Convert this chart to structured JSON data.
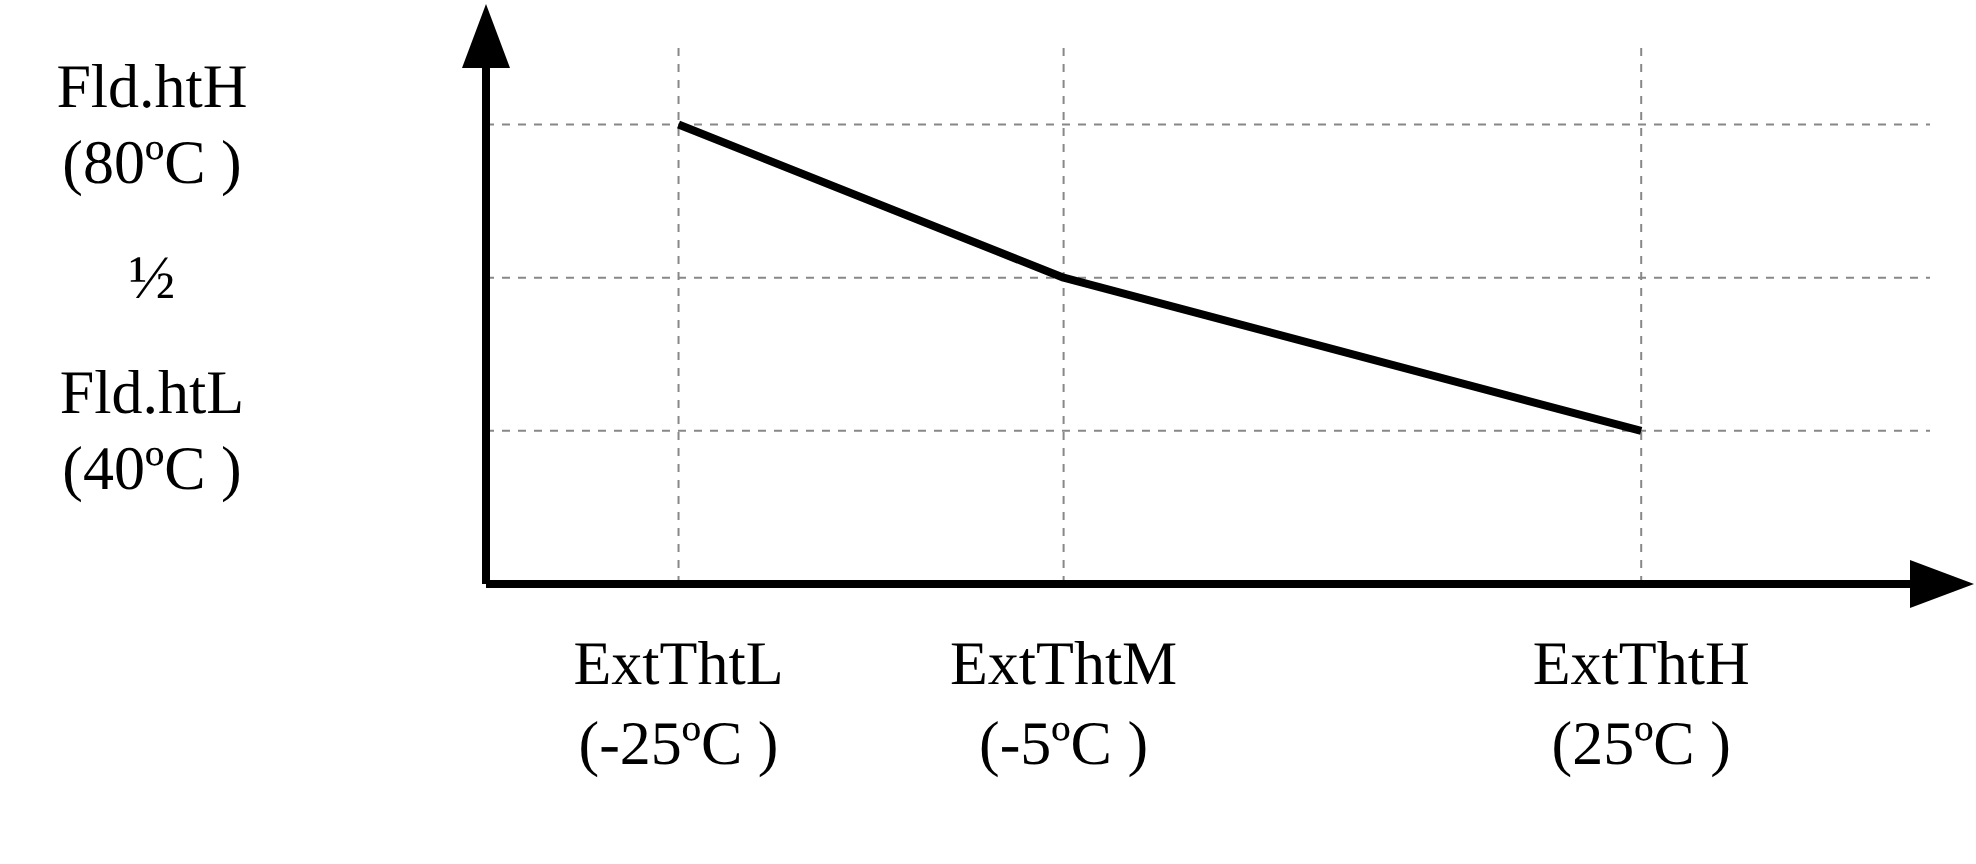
{
  "chart_data": {
    "type": "line",
    "x": [
      -25,
      -5,
      25
    ],
    "series": [
      {
        "color": "#000000",
        "values": [
          80,
          60,
          40
        ]
      }
    ],
    "xlim": [
      -35,
      40
    ],
    "xticks": [
      {
        "value": -25,
        "label": "ExtThtL\n(-25ºC )"
      },
      {
        "value": -5,
        "label": "ExtThtM\n(-5ºC )"
      },
      {
        "value": 25,
        "label": "ExtThtH\n(25ºC )"
      }
    ],
    "ylim": [
      20,
      90
    ],
    "yticks": [
      {
        "value": 40,
        "label": "Fld.htL\n(40ºC )"
      },
      {
        "value": 60,
        "label": "½"
      },
      {
        "value": 80,
        "label": "Fld.htH\n(80ºC )"
      }
    ],
    "grid": true,
    "legend": false,
    "marker": "none",
    "line_style": "solid"
  }
}
